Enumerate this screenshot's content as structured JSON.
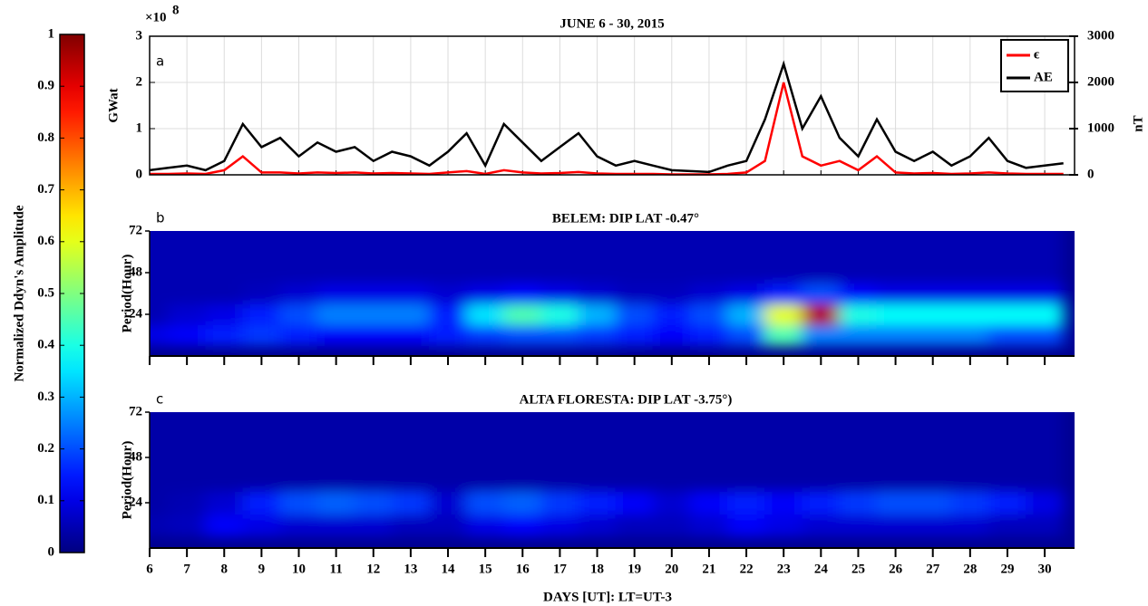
{
  "colorbar": {
    "label": "Normalized Ddyn's Amplitude",
    "colormap": "jet",
    "ylim": [
      0,
      1
    ],
    "yticks": [
      0,
      0.1,
      0.2,
      0.3,
      0.4,
      0.5,
      0.6,
      0.7,
      0.8,
      0.9,
      1
    ]
  },
  "chart_data": [
    {
      "type": "line",
      "panel_label": "a",
      "title": "JUNE 6 - 30, 2015",
      "ylabel": "GWat",
      "y2label": "nT",
      "y_multiplier": "×10",
      "y_multiplier_exponent": "8",
      "grid": true,
      "legend": "upper right",
      "xlim": [
        6,
        30.8
      ],
      "xticks": [
        6,
        7,
        8,
        9,
        10,
        11,
        12,
        13,
        14,
        15,
        16,
        17,
        18,
        19,
        20,
        21,
        22,
        23,
        24,
        25,
        26,
        27,
        28,
        29,
        30
      ],
      "ylim": [
        0,
        3
      ],
      "yticks": [
        0,
        1,
        2,
        3
      ],
      "y2lim": [
        0,
        3000
      ],
      "y2ticks": [
        0,
        1000,
        2000,
        3000
      ],
      "x": [
        6,
        6.5,
        7,
        7.5,
        8,
        8.5,
        9,
        9.5,
        10,
        10.5,
        11,
        11.5,
        12,
        12.5,
        13,
        13.5,
        14,
        14.5,
        15,
        15.5,
        16,
        16.5,
        17,
        17.5,
        18,
        18.5,
        19,
        19.5,
        20,
        20.5,
        21,
        21.5,
        22,
        22.5,
        23,
        23.5,
        24,
        24.5,
        25,
        25.5,
        26,
        26.5,
        27,
        27.5,
        28,
        28.5,
        29,
        29.5,
        30,
        30.5
      ],
      "series": [
        {
          "name": "AE",
          "color": "#000000",
          "axis": "y2",
          "values": [
            100,
            150,
            200,
            100,
            300,
            1100,
            600,
            800,
            400,
            700,
            500,
            600,
            300,
            500,
            400,
            200,
            500,
            900,
            200,
            1100,
            700,
            300,
            600,
            900,
            400,
            200,
            300,
            200,
            100,
            80,
            60,
            200,
            300,
            1200,
            2400,
            1000,
            1700,
            800,
            400,
            1200,
            500,
            300,
            500,
            200,
            400,
            800,
            300,
            150,
            200,
            250
          ]
        },
        {
          "name": "ϵ",
          "color": "#ff0000",
          "values": [
            0.02,
            0.02,
            0.03,
            0.02,
            0.1,
            0.4,
            0.05,
            0.05,
            0.03,
            0.05,
            0.04,
            0.05,
            0.03,
            0.04,
            0.03,
            0.02,
            0.05,
            0.08,
            0.02,
            0.1,
            0.05,
            0.03,
            0.04,
            0.06,
            0.03,
            0.02,
            0.02,
            0.02,
            0.01,
            0.01,
            0.01,
            0.02,
            0.05,
            0.3,
            2.0,
            0.4,
            0.2,
            0.3,
            0.1,
            0.4,
            0.05,
            0.03,
            0.04,
            0.02,
            0.03,
            0.05,
            0.03,
            0.02,
            0.02,
            0.02
          ]
        }
      ]
    },
    {
      "type": "heatmap",
      "panel_label": "b",
      "title": "BELEM: DIP LAT -0.47°",
      "ylabel": "Period(Hour)",
      "xlim": [
        6,
        30.8
      ],
      "xticks": [
        6,
        7,
        8,
        9,
        10,
        11,
        12,
        13,
        14,
        15,
        16,
        17,
        18,
        19,
        20,
        21,
        22,
        23,
        24,
        25,
        26,
        27,
        28,
        29,
        30
      ],
      "ylim": [
        0,
        72
      ],
      "yticks": [
        24,
        48,
        72
      ],
      "x": [
        6,
        7,
        8,
        9,
        10,
        11,
        12,
        13,
        14,
        15,
        16,
        17,
        18,
        19,
        20,
        21,
        22,
        23,
        24,
        25,
        26,
        27,
        28,
        29,
        30
      ],
      "y": [
        12,
        24,
        36,
        48,
        60,
        72
      ],
      "z": [
        [
          0.1,
          0.12,
          0.15,
          0.18,
          0.15,
          0.12,
          0.12,
          0.12,
          0.15,
          0.18,
          0.2,
          0.2,
          0.18,
          0.15,
          0.12,
          0.15,
          0.2,
          0.45,
          0.25,
          0.25,
          0.25,
          0.25,
          0.25,
          0.2,
          0.2
        ],
        [
          0.05,
          0.08,
          0.1,
          0.15,
          0.2,
          0.25,
          0.25,
          0.25,
          0.15,
          0.35,
          0.45,
          0.4,
          0.3,
          0.2,
          0.15,
          0.2,
          0.3,
          0.6,
          0.95,
          0.4,
          0.38,
          0.38,
          0.38,
          0.38,
          0.38
        ],
        [
          0.05,
          0.05,
          0.05,
          0.06,
          0.08,
          0.1,
          0.1,
          0.1,
          0.08,
          0.1,
          0.12,
          0.1,
          0.08,
          0.06,
          0.06,
          0.08,
          0.1,
          0.15,
          0.2,
          0.12,
          0.1,
          0.1,
          0.1,
          0.1,
          0.1
        ],
        [
          0.05,
          0.05,
          0.05,
          0.05,
          0.05,
          0.05,
          0.05,
          0.05,
          0.05,
          0.05,
          0.05,
          0.05,
          0.05,
          0.05,
          0.05,
          0.05,
          0.05,
          0.05,
          0.05,
          0.05,
          0.05,
          0.05,
          0.05,
          0.05,
          0.05
        ],
        [
          0.05,
          0.05,
          0.05,
          0.05,
          0.05,
          0.05,
          0.05,
          0.05,
          0.05,
          0.05,
          0.05,
          0.05,
          0.05,
          0.05,
          0.05,
          0.05,
          0.05,
          0.05,
          0.05,
          0.05,
          0.05,
          0.05,
          0.05,
          0.05,
          0.05
        ],
        [
          0.05,
          0.05,
          0.05,
          0.05,
          0.05,
          0.05,
          0.05,
          0.05,
          0.05,
          0.05,
          0.05,
          0.05,
          0.05,
          0.05,
          0.05,
          0.05,
          0.05,
          0.05,
          0.05,
          0.05,
          0.05,
          0.05,
          0.05,
          0.05,
          0.05
        ]
      ]
    },
    {
      "type": "heatmap",
      "panel_label": "c",
      "title": "ALTA FLORESTA: DIP LAT -3.75°)",
      "ylabel": "Period(Hour)",
      "xlabel": "DAYS [UT]: LT=UT-3",
      "xlim": [
        6,
        30.8
      ],
      "xticks": [
        6,
        7,
        8,
        9,
        10,
        11,
        12,
        13,
        14,
        15,
        16,
        17,
        18,
        19,
        20,
        21,
        22,
        23,
        24,
        25,
        26,
        27,
        28,
        29,
        30
      ],
      "ylim": [
        0,
        72
      ],
      "yticks": [
        24,
        48,
        72
      ],
      "x": [
        6,
        7,
        8,
        9,
        10,
        11,
        12,
        13,
        14,
        15,
        16,
        17,
        18,
        19,
        20,
        21,
        22,
        23,
        24,
        25,
        26,
        27,
        28,
        29,
        30
      ],
      "y": [
        12,
        24,
        36,
        48,
        60,
        72
      ],
      "z": [
        [
          0.05,
          0.06,
          0.12,
          0.1,
          0.08,
          0.08,
          0.08,
          0.06,
          0.06,
          0.1,
          0.12,
          0.1,
          0.08,
          0.06,
          0.06,
          0.08,
          0.12,
          0.1,
          0.08,
          0.08,
          0.08,
          0.08,
          0.08,
          0.06,
          0.06
        ],
        [
          0.04,
          0.05,
          0.08,
          0.15,
          0.2,
          0.22,
          0.2,
          0.18,
          0.08,
          0.2,
          0.22,
          0.18,
          0.15,
          0.12,
          0.08,
          0.12,
          0.15,
          0.12,
          0.15,
          0.18,
          0.2,
          0.2,
          0.18,
          0.15,
          0.1
        ],
        [
          0.04,
          0.04,
          0.04,
          0.04,
          0.04,
          0.04,
          0.04,
          0.04,
          0.04,
          0.04,
          0.04,
          0.04,
          0.04,
          0.04,
          0.04,
          0.04,
          0.04,
          0.04,
          0.04,
          0.04,
          0.04,
          0.04,
          0.04,
          0.04,
          0.04
        ],
        [
          0.04,
          0.04,
          0.04,
          0.04,
          0.04,
          0.04,
          0.04,
          0.04,
          0.04,
          0.04,
          0.04,
          0.04,
          0.04,
          0.04,
          0.04,
          0.04,
          0.04,
          0.04,
          0.04,
          0.04,
          0.04,
          0.04,
          0.04,
          0.04,
          0.04
        ],
        [
          0.04,
          0.04,
          0.04,
          0.04,
          0.04,
          0.04,
          0.04,
          0.04,
          0.04,
          0.04,
          0.04,
          0.04,
          0.04,
          0.04,
          0.04,
          0.04,
          0.04,
          0.04,
          0.04,
          0.04,
          0.04,
          0.04,
          0.04,
          0.04,
          0.04
        ],
        [
          0.04,
          0.04,
          0.04,
          0.04,
          0.04,
          0.04,
          0.04,
          0.04,
          0.04,
          0.04,
          0.04,
          0.04,
          0.04,
          0.04,
          0.04,
          0.04,
          0.04,
          0.04,
          0.04,
          0.04,
          0.04,
          0.04,
          0.04,
          0.04,
          0.04
        ]
      ]
    }
  ]
}
